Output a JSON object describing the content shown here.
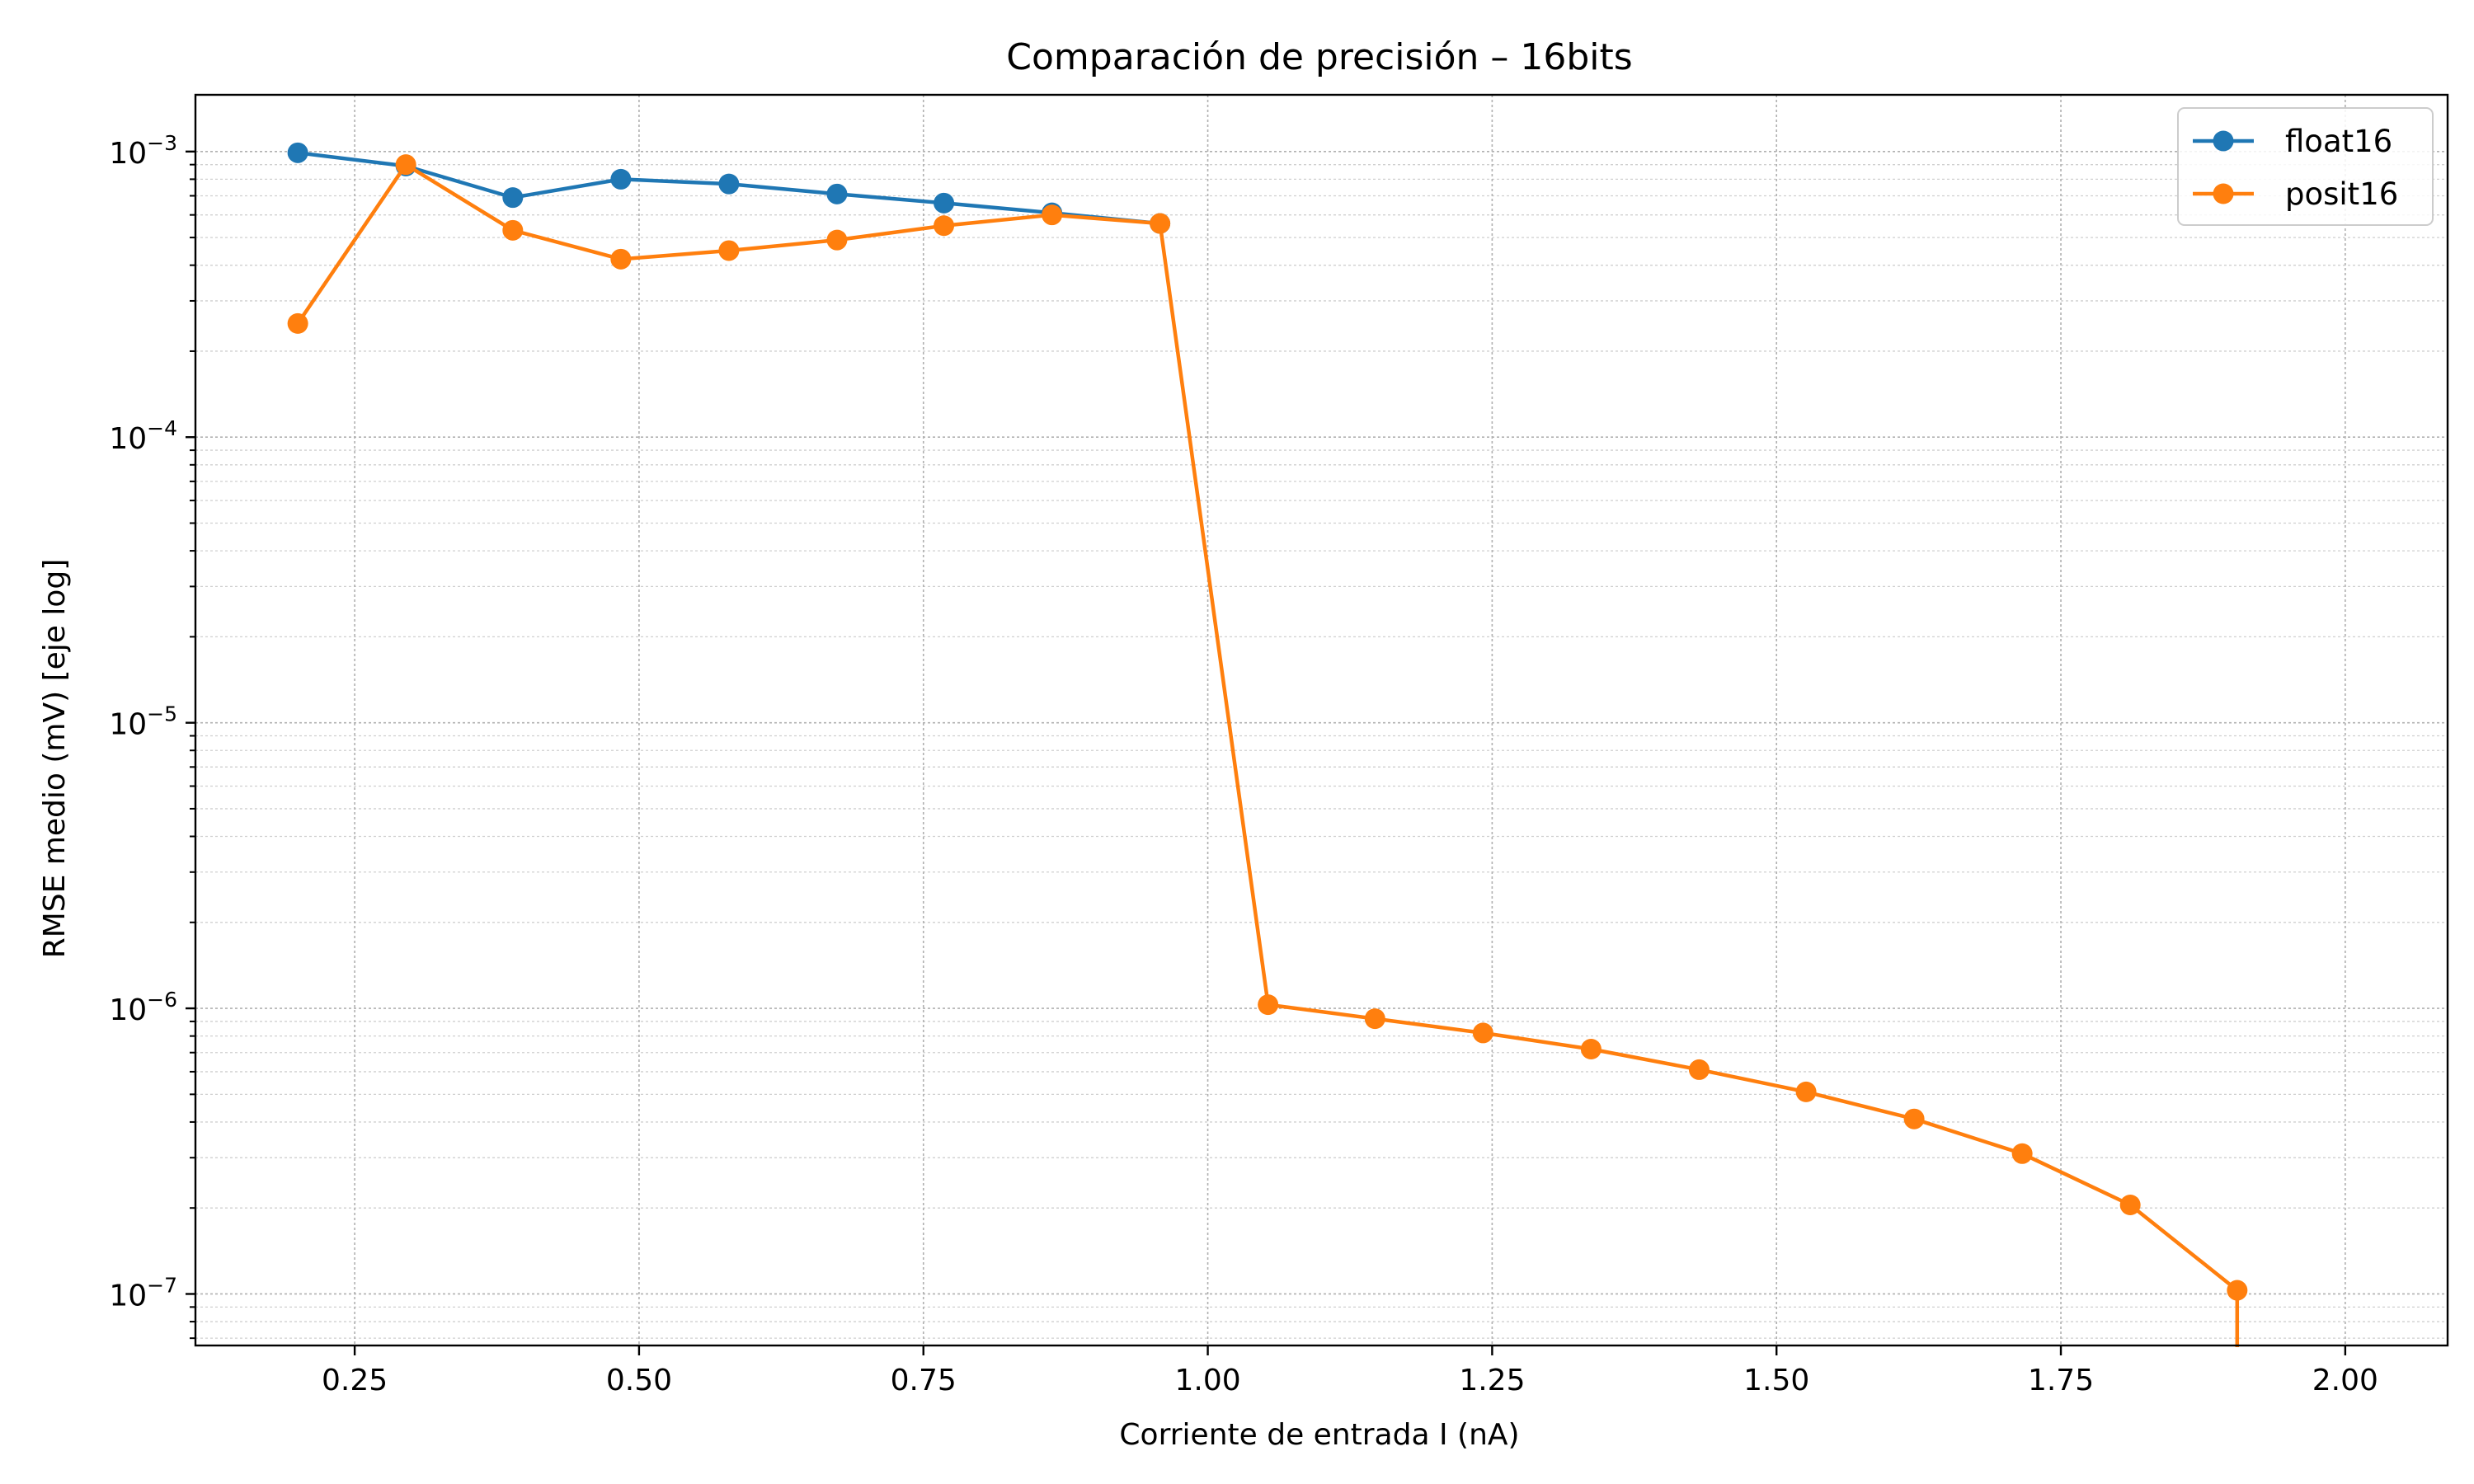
{
  "chart_data": {
    "type": "line",
    "title": "Comparación de precisión – 16bits",
    "xlabel": "Corriente de entrada I (nA)",
    "ylabel": "RMSE medio (mV) [eje log]",
    "xlim": [
      0.11,
      2.09
    ],
    "ylim": [
      6.6e-08,
      0.00158
    ],
    "yscale": "log",
    "grid": "major and minor, dotted",
    "legend_position": "top-right",
    "x_ticks": [
      "0.25",
      "0.50",
      "0.75",
      "1.00",
      "1.25",
      "1.50",
      "1.75",
      "2.00"
    ],
    "x_tick_values": [
      0.25,
      0.5,
      0.75,
      1.0,
      1.25,
      1.5,
      1.75,
      2.0
    ],
    "y_ticks": [
      {
        "base": "10",
        "exp": "−3",
        "value": 0.001
      },
      {
        "base": "10",
        "exp": "−4",
        "value": 0.0001
      },
      {
        "base": "10",
        "exp": "−5",
        "value": 1e-05
      },
      {
        "base": "10",
        "exp": "−6",
        "value": 1e-06
      },
      {
        "base": "10",
        "exp": "−7",
        "value": 1e-07
      }
    ],
    "series": [
      {
        "name": "float16",
        "color": "#1f77b4",
        "x": [
          0.2,
          0.295,
          0.389,
          0.484,
          0.579,
          0.674,
          0.768,
          0.863,
          0.958
        ],
        "y": [
          0.00099,
          0.00089,
          0.00069,
          0.0008,
          0.00077,
          0.00071,
          0.00066,
          0.00061,
          0.00056
        ]
      },
      {
        "name": "posit16",
        "color": "#ff7f0e",
        "x": [
          0.2,
          0.295,
          0.389,
          0.484,
          0.579,
          0.674,
          0.768,
          0.863,
          0.958,
          1.053,
          1.147,
          1.242,
          1.337,
          1.432,
          1.526,
          1.621,
          1.716,
          1.811,
          1.905
        ],
        "y": [
          0.00025,
          0.0009,
          0.00053,
          0.00042,
          0.00045,
          0.00049,
          0.00055,
          0.0006,
          0.00056,
          1.03e-06,
          9.2e-07,
          8.2e-07,
          7.2e-07,
          6.1e-07,
          5.1e-07,
          4.1e-07,
          3.1e-07,
          2.05e-07,
          1.03e-07
        ],
        "tail_to_zero": true
      }
    ]
  }
}
